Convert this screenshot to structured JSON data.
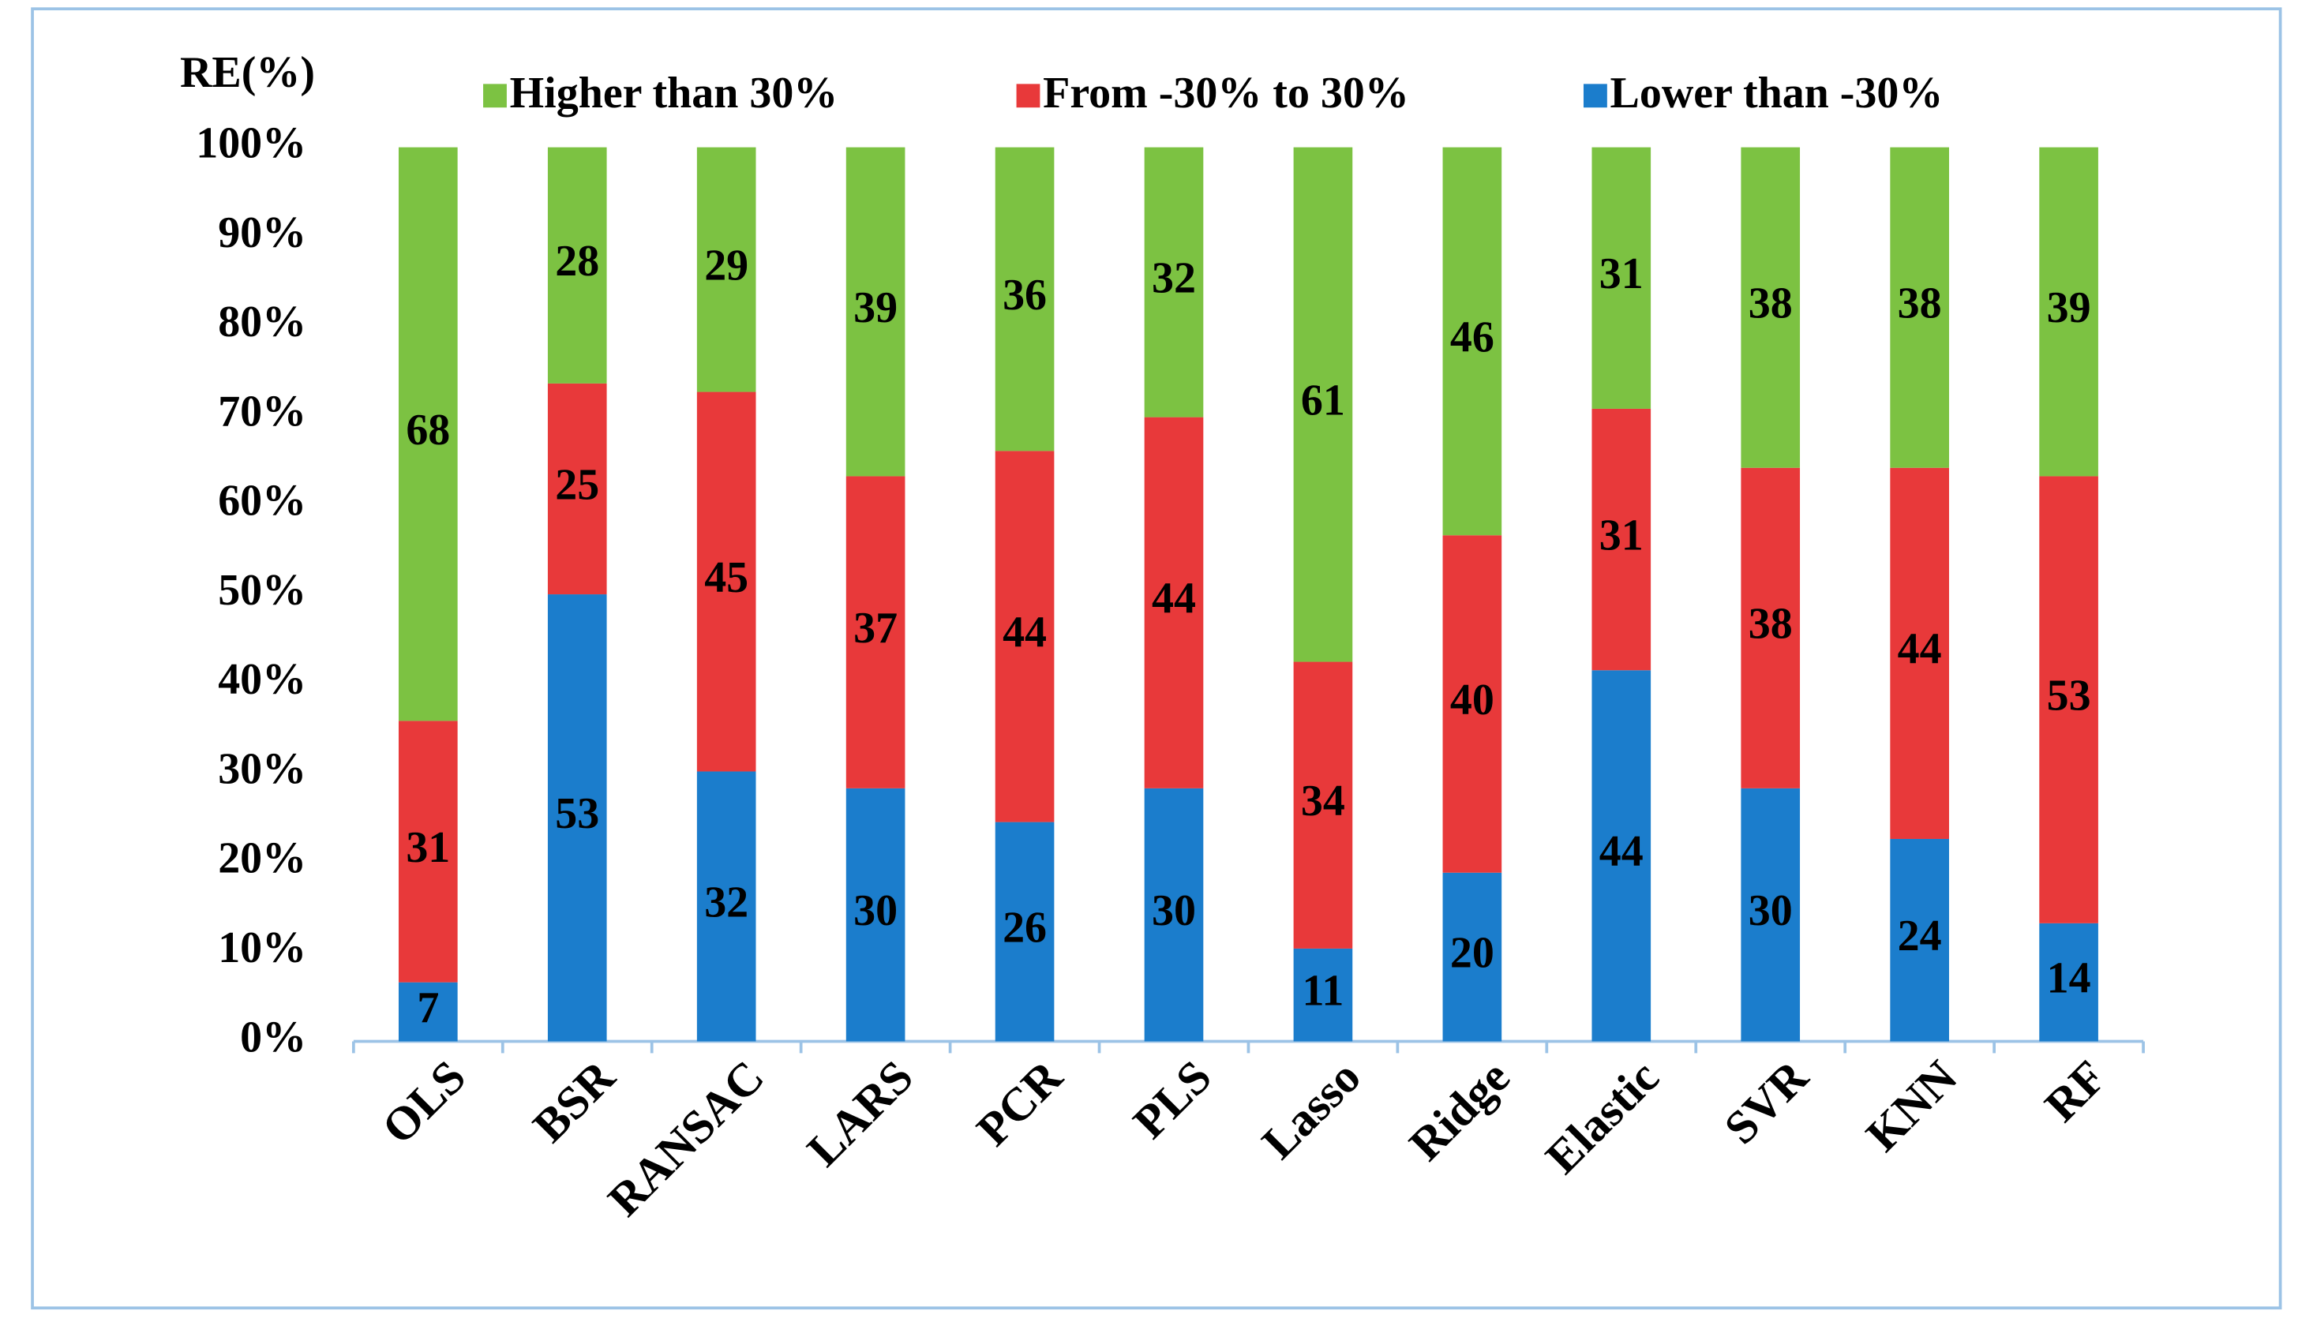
{
  "chart_data": {
    "type": "bar",
    "stack": "percent",
    "ylabel": "RE(%)",
    "categories": [
      "OLS",
      "BSR",
      "RANSAC",
      "LARS",
      "PCR",
      "PLS",
      "Lasso",
      "Ridge",
      "Elastic",
      "SVR",
      "KNN",
      "RF"
    ],
    "series": [
      {
        "name": "Higher than 30%",
        "color": "#7cc242",
        "values": [
          68,
          28,
          29,
          39,
          36,
          32,
          61,
          46,
          31,
          38,
          38,
          39
        ]
      },
      {
        "name": "From -30% to 30%",
        "color": "#e8393a",
        "values": [
          31,
          25,
          45,
          37,
          44,
          44,
          34,
          40,
          31,
          38,
          44,
          53
        ]
      },
      {
        "name": "Lower than -30%",
        "color": "#1b7dcc",
        "values": [
          7,
          53,
          32,
          30,
          26,
          30,
          11,
          20,
          44,
          30,
          24,
          14
        ]
      }
    ],
    "ylim": [
      0,
      100
    ],
    "yticks": [
      {
        "value": 0,
        "label": "0%"
      },
      {
        "value": 10,
        "label": "10%"
      },
      {
        "value": 20,
        "label": "20%"
      },
      {
        "value": 30,
        "label": "30%"
      },
      {
        "value": 40,
        "label": "40%"
      },
      {
        "value": 50,
        "label": "50%"
      },
      {
        "value": 60,
        "label": "60%"
      },
      {
        "value": 70,
        "label": "70%"
      },
      {
        "value": 80,
        "label": "80%"
      },
      {
        "value": 90,
        "label": "90%"
      },
      {
        "value": 100,
        "label": "100%"
      }
    ],
    "grid": false,
    "legend": "top"
  }
}
